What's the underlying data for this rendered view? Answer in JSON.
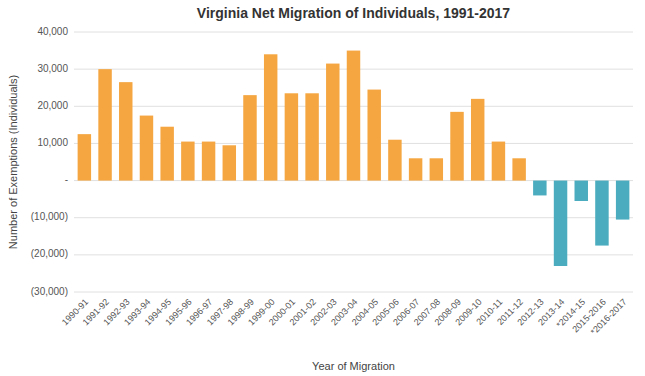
{
  "chart_data": {
    "type": "bar",
    "title": "Virginia Net Migration of Individuals, 1991-2017",
    "xlabel": "Year of Migration",
    "ylabel": "Number of Exemptions (Individuals)",
    "categories": [
      "1990-91",
      "1991-92",
      "1992-93",
      "1993-94",
      "1994-95",
      "1995-96",
      "1996-97",
      "1997-98",
      "1998-99",
      "1999-00",
      "2000-01",
      "2001-02",
      "2002-03",
      "2003-04",
      "2004-05",
      "2005-06",
      "2006-07",
      "2007-08",
      "2008-09",
      "2009-10",
      "2010-11",
      "2011-12",
      "2012-13",
      "2013-14",
      "*2014-15",
      "2015-2016",
      "*2016-2017"
    ],
    "values": [
      12500,
      30000,
      26500,
      17500,
      14500,
      10500,
      10500,
      9500,
      23000,
      34000,
      23500,
      23500,
      31500,
      35000,
      24500,
      11000,
      6000,
      6000,
      18500,
      22000,
      10500,
      6000,
      -4000,
      -23000,
      -5500,
      -17500,
      -10500
    ],
    "colors": [
      "#f5a641",
      "#f5a641",
      "#f5a641",
      "#f5a641",
      "#f5a641",
      "#f5a641",
      "#f5a641",
      "#f5a641",
      "#f5a641",
      "#f5a641",
      "#f5a641",
      "#f5a641",
      "#f5a641",
      "#f5a641",
      "#f5a641",
      "#f5a641",
      "#f5a641",
      "#f5a641",
      "#f5a641",
      "#f5a641",
      "#f5a641",
      "#f5a641",
      "#4aacbe",
      "#4aacbe",
      "#4aacbe",
      "#4aacbe",
      "#4aacbe"
    ],
    "ylim": [
      -30000,
      40000
    ],
    "yticks": [
      {
        "value": -30000,
        "label": "(30,000)"
      },
      {
        "value": -20000,
        "label": "(20,000)"
      },
      {
        "value": -10000,
        "label": "(10,000)"
      },
      {
        "value": 0,
        "label": "-"
      },
      {
        "value": 10000,
        "label": "10,000"
      },
      {
        "value": 20000,
        "label": "20,000"
      },
      {
        "value": 30000,
        "label": "30,000"
      },
      {
        "value": 40000,
        "label": "40,000"
      }
    ],
    "grid": true
  }
}
